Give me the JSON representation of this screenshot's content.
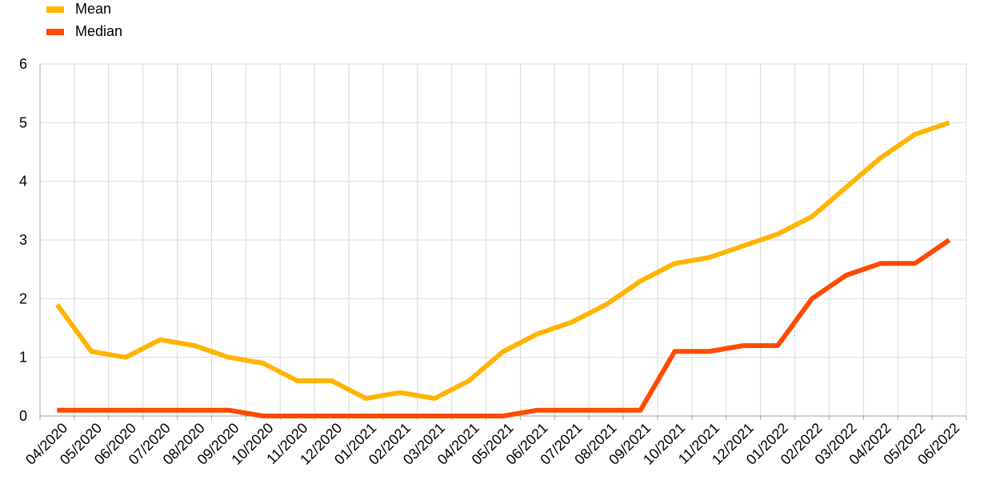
{
  "chart_data": {
    "type": "line",
    "title": "",
    "xlabel": "",
    "ylabel": "",
    "ylim": [
      0,
      6
    ],
    "yticks": [
      "0",
      "1",
      "2",
      "3",
      "4",
      "5",
      "6"
    ],
    "grid": true,
    "legend_position": "top-left",
    "categories": [
      "04/2020",
      "05/2020",
      "06/2020",
      "07/2020",
      "08/2020",
      "09/2020",
      "10/2020",
      "11/2020",
      "12/2020",
      "01/2021",
      "02/2021",
      "03/2021",
      "04/2021",
      "05/2021",
      "06/2021",
      "07/2021",
      "08/2021",
      "09/2021",
      "10/2021",
      "11/2021",
      "12/2021",
      "01/2022",
      "02/2022",
      "03/2022",
      "04/2022",
      "05/2022",
      "06/2022"
    ],
    "series": [
      {
        "name": "Mean",
        "color": "#FFB400",
        "values": [
          1.9,
          1.1,
          1.0,
          1.3,
          1.2,
          1.0,
          0.9,
          0.6,
          0.6,
          0.3,
          0.4,
          0.3,
          0.6,
          1.1,
          1.4,
          1.6,
          1.9,
          2.3,
          2.6,
          2.7,
          2.9,
          3.1,
          3.4,
          3.9,
          4.4,
          4.8,
          5.0
        ]
      },
      {
        "name": "Median",
        "color": "#FF4B00",
        "values": [
          0.1,
          0.1,
          0.1,
          0.1,
          0.1,
          0.1,
          0.0,
          0.0,
          0.0,
          0.0,
          0.0,
          0.0,
          0.0,
          0.0,
          0.1,
          0.1,
          0.1,
          0.1,
          1.1,
          1.1,
          1.2,
          1.2,
          2.0,
          2.4,
          2.6,
          2.6,
          3.0
        ]
      }
    ]
  }
}
